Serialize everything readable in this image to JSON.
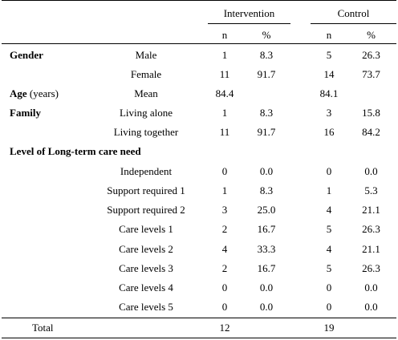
{
  "header": {
    "group1": "Intervention",
    "group2": "Control",
    "n": "n",
    "pct": "%"
  },
  "rows": [
    {
      "section": "Gender",
      "label": "Male",
      "i_n": "1",
      "i_p": "8.3",
      "c_n": "5",
      "c_p": "26.3"
    },
    {
      "section": "",
      "label": "Female",
      "i_n": "11",
      "i_p": "91.7",
      "c_n": "14",
      "c_p": "73.7"
    },
    {
      "section": "Age",
      "section_suffix": " (years)",
      "label": "Mean",
      "i_n": "84.4",
      "i_p": "",
      "c_n": "84.1",
      "c_p": ""
    },
    {
      "section": "Family",
      "label": "Living alone",
      "i_n": "1",
      "i_p": "8.3",
      "c_n": "3",
      "c_p": "15.8"
    },
    {
      "section": "",
      "label": "Living together",
      "i_n": "11",
      "i_p": "91.7",
      "c_n": "16",
      "c_p": "84.2"
    },
    {
      "section": "Level of Long-term care need",
      "label": "",
      "i_n": "",
      "i_p": "",
      "c_n": "",
      "c_p": ""
    },
    {
      "section": "",
      "label": "Independent",
      "i_n": "0",
      "i_p": "0.0",
      "c_n": "0",
      "c_p": "0.0"
    },
    {
      "section": "",
      "label": "Support required 1",
      "i_n": "1",
      "i_p": "8.3",
      "c_n": "1",
      "c_p": "5.3"
    },
    {
      "section": "",
      "label": "Support required 2",
      "i_n": "3",
      "i_p": "25.0",
      "c_n": "4",
      "c_p": "21.1"
    },
    {
      "section": "",
      "label": "Care levels 1",
      "i_n": "2",
      "i_p": "16.7",
      "c_n": "5",
      "c_p": "26.3"
    },
    {
      "section": "",
      "label": "Care levels 2",
      "i_n": "4",
      "i_p": "33.3",
      "c_n": "4",
      "c_p": "21.1"
    },
    {
      "section": "",
      "label": "Care levels 3",
      "i_n": "2",
      "i_p": "16.7",
      "c_n": "5",
      "c_p": "26.3"
    },
    {
      "section": "",
      "label": "Care levels 4",
      "i_n": "0",
      "i_p": "0.0",
      "c_n": "0",
      "c_p": "0.0"
    },
    {
      "section": "",
      "label": "Care levels 5",
      "i_n": "0",
      "i_p": "0.0",
      "c_n": "0",
      "c_p": "0.0"
    }
  ],
  "total": {
    "label": "Total",
    "i_n": "12",
    "c_n": "19"
  }
}
